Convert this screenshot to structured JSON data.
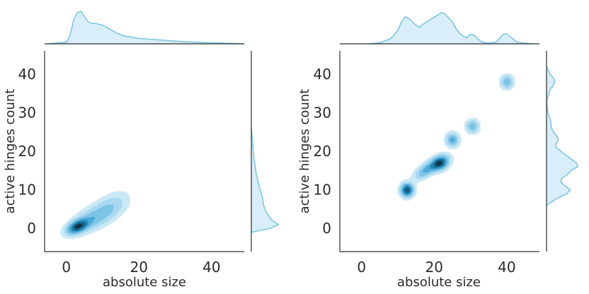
{
  "colors": {
    "fill_light": "#d9eef8",
    "line": "#7ec8e3",
    "kde_levels": [
      "#cbe8f5",
      "#a9d9ef",
      "#7dc4e6",
      "#4aa9d6",
      "#2286b6",
      "#155f80",
      "#0f3346"
    ]
  },
  "chart_data": [
    {
      "type": "kde_joint",
      "xlabel": "absolute size",
      "ylabel": "active hinges count",
      "xlim": [
        -6,
        49
      ],
      "ylim": [
        -6,
        46
      ],
      "xticks": [
        0,
        20,
        40
      ],
      "yticks": [
        0,
        10,
        20,
        30,
        40
      ],
      "grid": false,
      "components": [
        {
          "x": 3,
          "y": 0.5,
          "sx": 2.0,
          "sy": 1.3,
          "rho": 0.5,
          "w": 1.0
        },
        {
          "x": 8,
          "y": 3,
          "sx": 4.0,
          "sy": 2.5,
          "rho": 0.6,
          "w": 0.55
        },
        {
          "x": 13,
          "y": 6.5,
          "sx": 3.0,
          "sy": 2.3,
          "rho": 0.4,
          "w": 0.22
        }
      ],
      "marginal_x": [
        [
          -5,
          0
        ],
        [
          0,
          0.05
        ],
        [
          1,
          0.25
        ],
        [
          2,
          0.7
        ],
        [
          3,
          0.92
        ],
        [
          4,
          0.96
        ],
        [
          5,
          0.8
        ],
        [
          6,
          0.65
        ],
        [
          7,
          0.6
        ],
        [
          8,
          0.6
        ],
        [
          10,
          0.55
        ],
        [
          12,
          0.43
        ],
        [
          14,
          0.31
        ],
        [
          16,
          0.23
        ],
        [
          20,
          0.16
        ],
        [
          25,
          0.12
        ],
        [
          30,
          0.08
        ],
        [
          35,
          0.05
        ],
        [
          40,
          0.03
        ],
        [
          45,
          0.015
        ],
        [
          49,
          0
        ]
      ],
      "marginal_y": [
        [
          -1,
          0
        ],
        [
          0,
          0.55
        ],
        [
          1,
          0.8
        ],
        [
          2,
          0.62
        ],
        [
          4,
          0.45
        ],
        [
          6,
          0.36
        ],
        [
          8,
          0.33
        ],
        [
          10,
          0.26
        ],
        [
          14,
          0.15
        ],
        [
          18,
          0.08
        ],
        [
          22,
          0.04
        ],
        [
          26,
          0
        ]
      ]
    },
    {
      "type": "kde_joint",
      "xlabel": "absolute size",
      "ylabel": "active hinges count",
      "xlim": [
        -6,
        49
      ],
      "ylim": [
        -6,
        46
      ],
      "xticks": [
        0,
        20,
        40
      ],
      "yticks": [
        0,
        10,
        20,
        30,
        40
      ],
      "grid": false,
      "components": [
        {
          "x": 12.5,
          "y": 10,
          "sx": 1.2,
          "sy": 1.2,
          "rho": 0,
          "w": 1.0
        },
        {
          "x": 21.5,
          "y": 17,
          "sx": 1.7,
          "sy": 1.3,
          "rho": 0.3,
          "w": 1.0
        },
        {
          "x": 17.5,
          "y": 15,
          "sx": 2.0,
          "sy": 1.5,
          "rho": 0.6,
          "w": 0.55
        },
        {
          "x": 25,
          "y": 23,
          "sx": 1.2,
          "sy": 1.2,
          "rho": 0,
          "w": 0.6
        },
        {
          "x": 30.5,
          "y": 26.5,
          "sx": 1.2,
          "sy": 1.2,
          "rho": 0,
          "w": 0.5
        },
        {
          "x": 40,
          "y": 38,
          "sx": 1.2,
          "sy": 1.2,
          "rho": 0,
          "w": 0.5
        }
      ],
      "marginal_x": [
        [
          2,
          0
        ],
        [
          5,
          0.03
        ],
        [
          8,
          0.15
        ],
        [
          10,
          0.4
        ],
        [
          11,
          0.65
        ],
        [
          12,
          0.8
        ],
        [
          13,
          0.75
        ],
        [
          15,
          0.55
        ],
        [
          16,
          0.48
        ],
        [
          17,
          0.58
        ],
        [
          19,
          0.72
        ],
        [
          21,
          0.85
        ],
        [
          22,
          0.92
        ],
        [
          23,
          0.88
        ],
        [
          25,
          0.65
        ],
        [
          26,
          0.45
        ],
        [
          27,
          0.32
        ],
        [
          28,
          0.22
        ],
        [
          29,
          0.18
        ],
        [
          30,
          0.28
        ],
        [
          31,
          0.25
        ],
        [
          33,
          0.06
        ],
        [
          35,
          0.02
        ],
        [
          37,
          0.05
        ],
        [
          38,
          0.15
        ],
        [
          39,
          0.28
        ],
        [
          40,
          0.3
        ],
        [
          41,
          0.2
        ],
        [
          43,
          0.04
        ],
        [
          47,
          0
        ]
      ],
      "marginal_y": [
        [
          6,
          0
        ],
        [
          8,
          0.35
        ],
        [
          9,
          0.6
        ],
        [
          10,
          0.7
        ],
        [
          11,
          0.55
        ],
        [
          12,
          0.42
        ],
        [
          13,
          0.45
        ],
        [
          14,
          0.62
        ],
        [
          15,
          0.72
        ],
        [
          16,
          0.92
        ],
        [
          17,
          0.88
        ],
        [
          18,
          0.72
        ],
        [
          20,
          0.42
        ],
        [
          21,
          0.28
        ],
        [
          22,
          0.28
        ],
        [
          23,
          0.35
        ],
        [
          24,
          0.3
        ],
        [
          25,
          0.2
        ],
        [
          26,
          0.15
        ],
        [
          27,
          0.13
        ],
        [
          28,
          0.12
        ],
        [
          30,
          0.04
        ],
        [
          33,
          0.01
        ],
        [
          36,
          0.1
        ],
        [
          37,
          0.2
        ],
        [
          38,
          0.24
        ],
        [
          39,
          0.2
        ],
        [
          40,
          0.1
        ],
        [
          42,
          0
        ]
      ]
    }
  ]
}
